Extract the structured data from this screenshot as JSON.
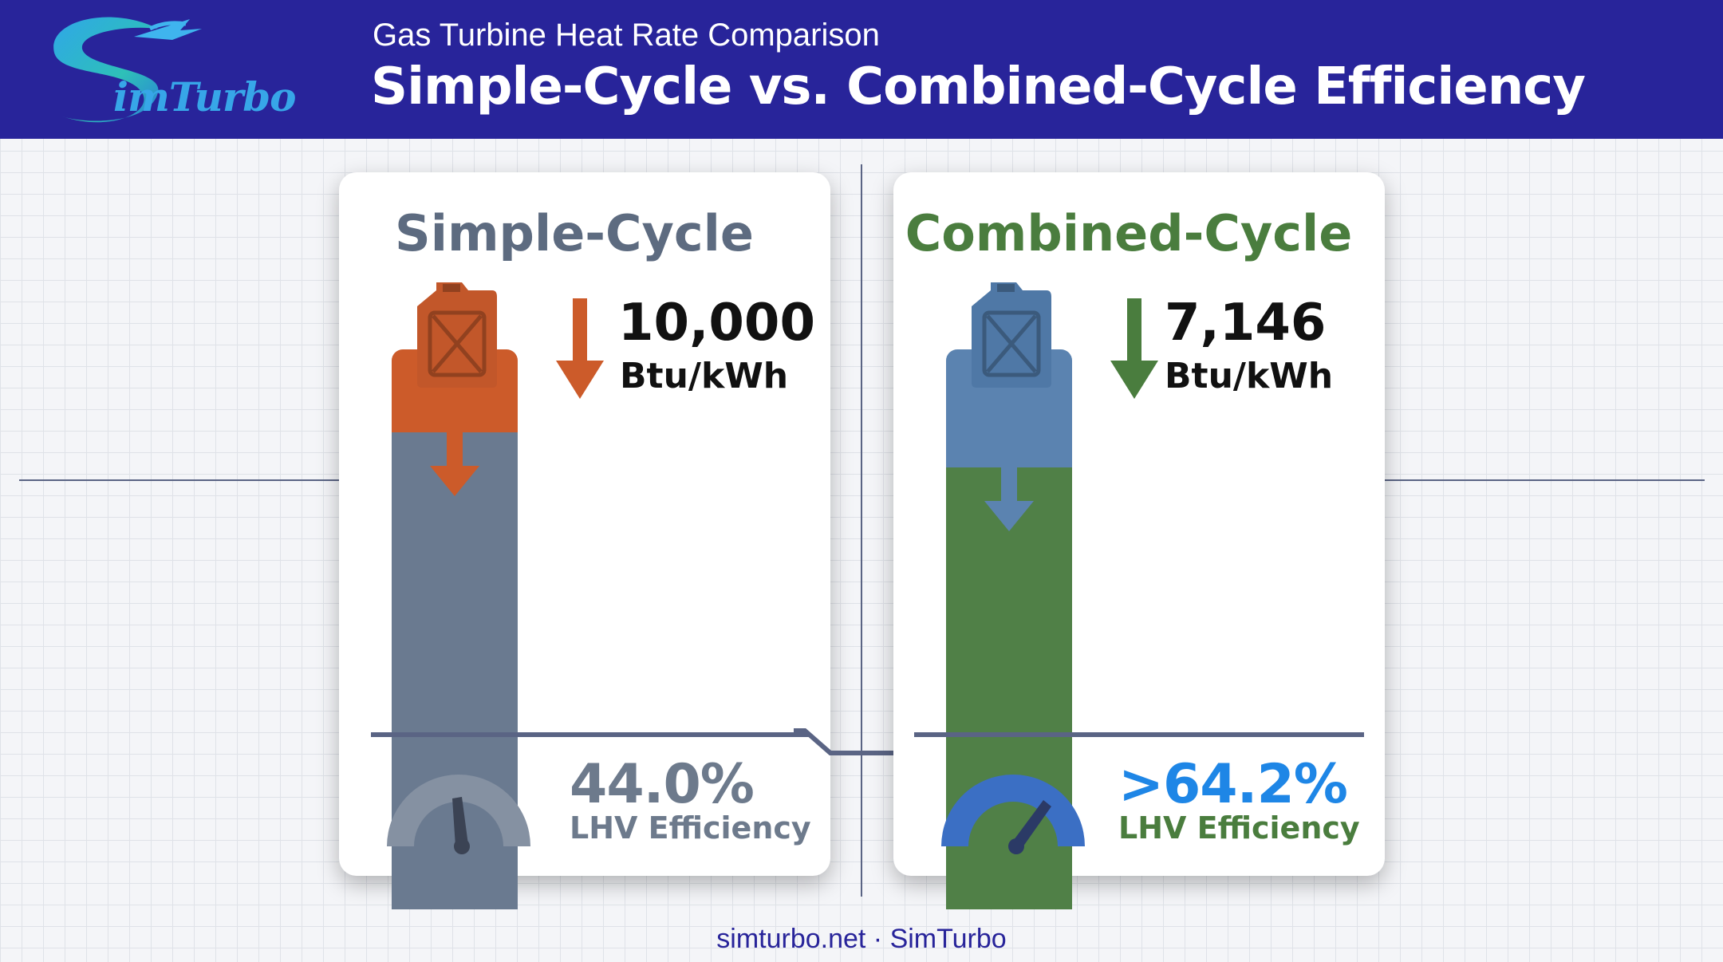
{
  "header": {
    "logo_text": "imTurbo",
    "subtitle": "Gas Turbine Heat Rate Comparison",
    "title": "Simple-Cycle vs. Combined-Cycle Efficiency"
  },
  "panels": [
    {
      "title": "Simple-Cycle",
      "heat_rate_value": "10,000",
      "heat_rate_unit": "Btu/kWh",
      "efficiency_value": "44.0%",
      "efficiency_label": "LHV Efficiency",
      "efficiency_fraction": 0.44,
      "title_color": "#5d6b80",
      "value_color": "#6d7a8c",
      "label_color": "#6d7a8c",
      "accent_color": "#cc5b2a",
      "bar_top_color": "#cc5b2a",
      "bar_bottom_color": "#6a7a90",
      "can_color": "#c2572a",
      "gauge_color": "#8591a2"
    },
    {
      "title": "Combined-Cycle",
      "heat_rate_value": "7,146",
      "heat_rate_unit": "Btu/kWh",
      "efficiency_value": ">64.2%",
      "efficiency_label": "LHV Efficiency",
      "efficiency_fraction": 0.642,
      "title_color": "#4a7d3e",
      "value_color": "#1e86e6",
      "label_color": "#4a7d3e",
      "accent_color": "#4a7d3e",
      "bar_top_color": "#5b83b0",
      "bar_bottom_color": "#508047",
      "can_color": "#4f78a6",
      "gauge_color": "#3b6fc4"
    }
  ],
  "footer": "simturbo.net · SimTurbo"
}
